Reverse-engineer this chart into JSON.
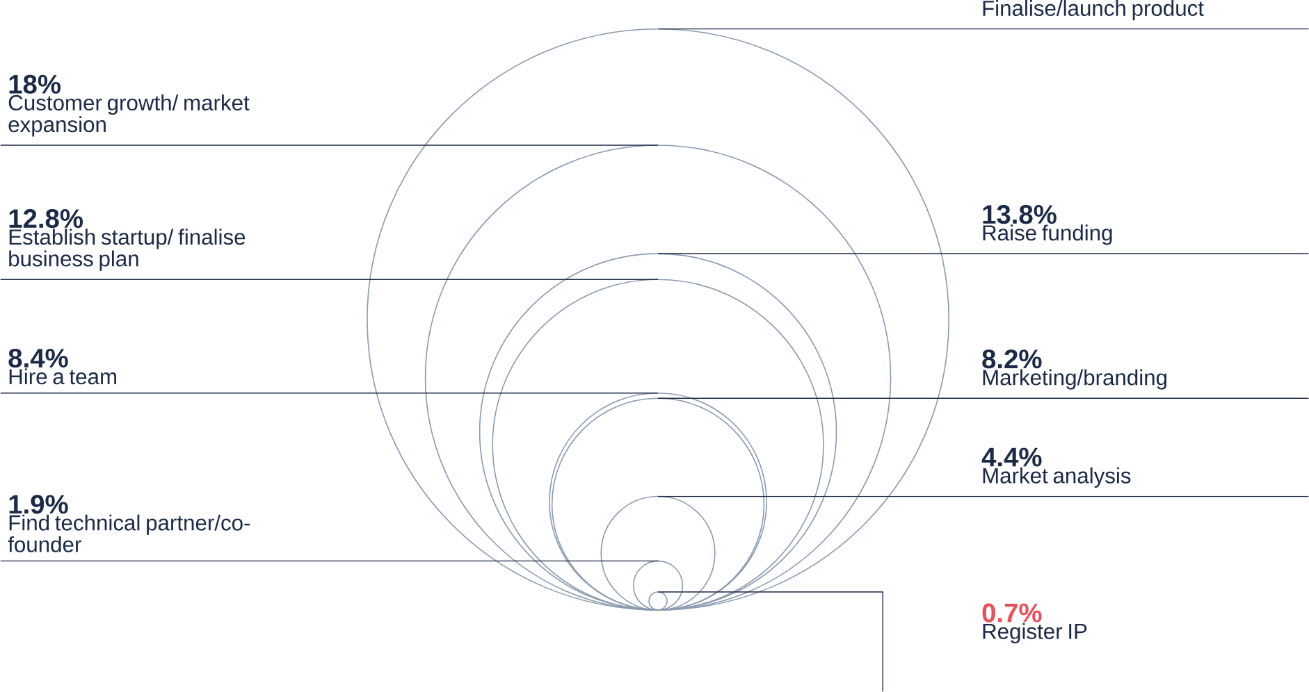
{
  "chart_data": {
    "type": "other",
    "categories": [
      "Finalise/launch product",
      "Customer growth/ market expansion",
      "Raise funding",
      "Establish startup/ finalise business plan",
      "Hire a team",
      "Marketing/branding",
      "Market analysis",
      "Find technical partner/co-founder",
      "Register IP"
    ],
    "values": [
      null,
      18,
      13.8,
      12.8,
      8.4,
      8.2,
      4.4,
      1.9,
      0.7
    ],
    "value_labels": [
      null,
      "18%",
      "13.8%",
      "12.8%",
      "8.4%",
      "8.2%",
      "4.4%",
      "1.9%",
      "0.7%"
    ],
    "colors": [
      "#1b2a47",
      "#1b2a47",
      "#1b2a47",
      "#1b2a47",
      "#1b2a47",
      "#1b2a47",
      "#1b2a47",
      "#1b2a47",
      "#e8505b"
    ],
    "color": "#8a9bb0"
  }
}
